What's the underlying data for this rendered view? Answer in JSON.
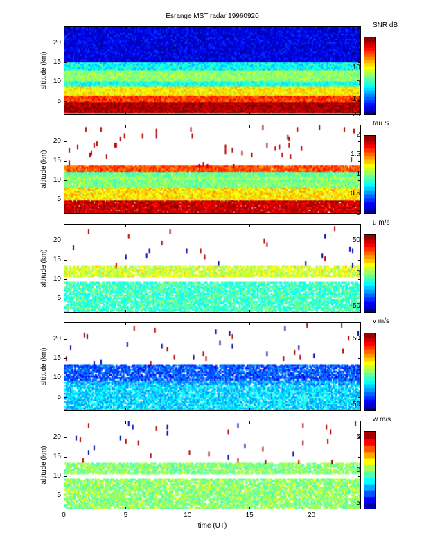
{
  "title": "Esrange MST radar 19960920",
  "xlabel": "time (UT)",
  "chart_data": [
    {
      "type": "heatmap",
      "name": "snr",
      "ylabel": "altitude (km)",
      "colorbar_label": "SNR dB",
      "clim": [
        -20,
        30
      ],
      "cticks": [
        -20,
        -10,
        0,
        10,
        20
      ],
      "yticks": [
        5,
        10,
        15,
        20
      ],
      "xticks": [
        0,
        5,
        10,
        15,
        20
      ],
      "xlim": [
        0,
        24
      ],
      "ylim": [
        1.5,
        24.3
      ],
      "coverage": 1.0,
      "profile": [
        [
          1.5,
          2.0,
          6
        ],
        [
          2.0,
          4.7,
          28
        ],
        [
          4.7,
          6.5,
          21
        ],
        [
          6.5,
          9.0,
          12
        ],
        [
          9.0,
          10.0,
          0
        ],
        [
          10.0,
          13.0,
          6
        ],
        [
          13.0,
          15.0,
          -1
        ],
        [
          15.0,
          24.3,
          -15
        ]
      ]
    },
    {
      "type": "heatmap",
      "name": "tau",
      "ylabel": "altitude (km)",
      "colorbar_label": "tau S",
      "clim": [
        0,
        2
      ],
      "cticks": [
        0,
        0.5,
        1,
        1.5,
        2
      ],
      "yticks": [
        5,
        10,
        15,
        20
      ],
      "xticks": [
        0,
        5,
        10,
        15,
        20
      ],
      "xlim": [
        0,
        24
      ],
      "ylim": [
        1.5,
        24.3
      ],
      "coverage": 0.95,
      "profile": [
        [
          1.5,
          4.8,
          1.85
        ],
        [
          4.8,
          8.0,
          1.3
        ],
        [
          8.0,
          10.0,
          1.0
        ],
        [
          10.0,
          11.0,
          1.05
        ],
        [
          11.0,
          12.3,
          0.95
        ],
        [
          12.3,
          14.0,
          1.6
        ]
      ]
    },
    {
      "type": "heatmap",
      "name": "u",
      "ylabel": "altitude (km)",
      "colorbar_label": "u m/s",
      "clim": [
        -60,
        60
      ],
      "cticks": [
        -50,
        0,
        50
      ],
      "yticks": [
        5,
        10,
        15,
        20
      ],
      "xticks": [
        0,
        5,
        10,
        15,
        20
      ],
      "xlim": [
        0,
        24
      ],
      "ylim": [
        1.5,
        24.3
      ],
      "coverage": 0.75,
      "profile": [
        [
          1.5,
          9.3,
          -8
        ],
        [
          10.5,
          13.5,
          10
        ]
      ]
    },
    {
      "type": "heatmap",
      "name": "v",
      "ylabel": "altitude (km)",
      "colorbar_label": "v m/s",
      "clim": [
        -60,
        60
      ],
      "cticks": [
        -50,
        0,
        50
      ],
      "yticks": [
        5,
        10,
        15,
        20
      ],
      "xticks": [
        0,
        5,
        10,
        15,
        20
      ],
      "xlim": [
        0,
        24
      ],
      "ylim": [
        1.5,
        24.3
      ],
      "coverage": 0.75,
      "profile": [
        [
          1.5,
          8.0,
          -20
        ],
        [
          8.0,
          9.5,
          -25
        ],
        [
          9.5,
          13.5,
          -35
        ]
      ]
    },
    {
      "type": "heatmap",
      "name": "w",
      "ylabel": "altitude (km)",
      "colorbar_label": "w m/s",
      "clim": [
        -6,
        6
      ],
      "cticks": [
        -5,
        0,
        5
      ],
      "yticks": [
        5,
        10,
        15,
        20
      ],
      "xticks": [
        0,
        5,
        10,
        15,
        20
      ],
      "xlim": [
        0,
        24
      ],
      "ylim": [
        1.5,
        24.3
      ],
      "coverage": 0.75,
      "profile": [
        [
          1.5,
          9.3,
          0.2
        ],
        [
          10.5,
          13.5,
          0.1
        ]
      ]
    }
  ]
}
